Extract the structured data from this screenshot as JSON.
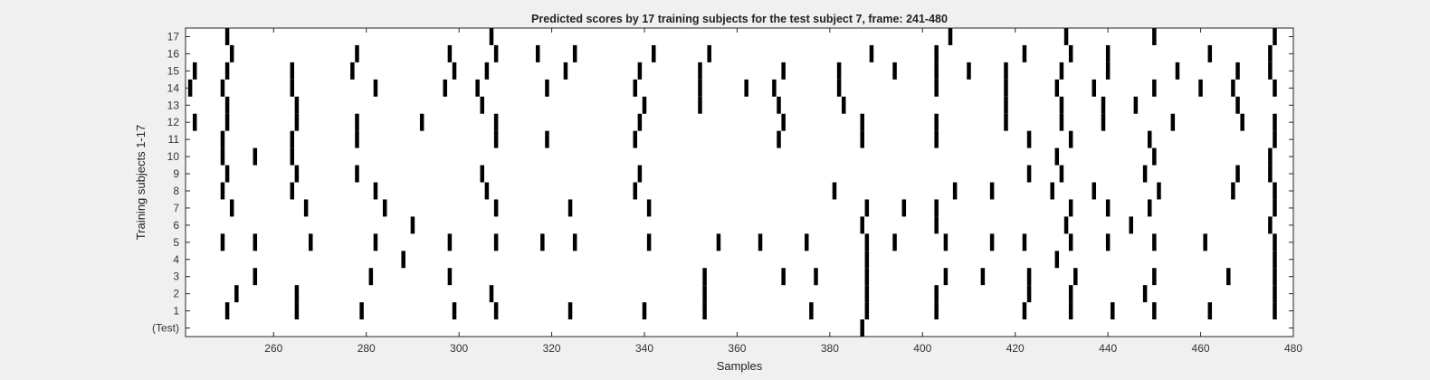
{
  "chart_data": {
    "type": "heatmap",
    "title": "Predicted scores by 17 training subjects for the test subject 7, frame: 241-480",
    "xlabel": "Samples",
    "ylabel": "Training subjects 1-17",
    "xlim": [
      241,
      480
    ],
    "xticks": [
      260,
      280,
      300,
      320,
      340,
      360,
      380,
      400,
      420,
      440,
      460,
      480
    ],
    "rows": [
      "(Test)",
      "1",
      "2",
      "3",
      "4",
      "5",
      "6",
      "7",
      "8",
      "9",
      "10",
      "11",
      "12",
      "13",
      "14",
      "15",
      "16",
      "17"
    ],
    "colors": {
      "mark": "#000000",
      "plot_bg": "#ffffff",
      "figure_bg": "#f0f0f0",
      "axis": "#262626"
    },
    "marks": [
      {
        "row": "(Test)",
        "x": [
          387
        ]
      },
      {
        "row": "1",
        "x": [
          250,
          265,
          279,
          299,
          308,
          324,
          340,
          353,
          376,
          388,
          403,
          422,
          432,
          441,
          450,
          462,
          476
        ]
      },
      {
        "row": "2",
        "x": [
          252,
          265,
          307,
          353,
          388,
          403,
          423,
          432,
          448,
          476
        ]
      },
      {
        "row": "3",
        "x": [
          256,
          281,
          298,
          353,
          370,
          377,
          388,
          405,
          413,
          423,
          433,
          450,
          466,
          476
        ]
      },
      {
        "row": "4",
        "x": [
          288,
          388,
          429,
          476
        ]
      },
      {
        "row": "5",
        "x": [
          249,
          256,
          268,
          282,
          298,
          308,
          318,
          325,
          341,
          356,
          365,
          375,
          388,
          394,
          405,
          415,
          422,
          432,
          440,
          450,
          461,
          476
        ]
      },
      {
        "row": "6",
        "x": [
          290,
          387,
          403,
          431,
          445,
          475
        ]
      },
      {
        "row": "7",
        "x": [
          251,
          267,
          284,
          308,
          324,
          341,
          388,
          396,
          403,
          432,
          440,
          449,
          476
        ]
      },
      {
        "row": "8",
        "x": [
          249,
          264,
          282,
          306,
          338,
          381,
          407,
          415,
          428,
          437,
          451,
          467,
          476
        ]
      },
      {
        "row": "9",
        "x": [
          250,
          265,
          278,
          305,
          339,
          423,
          430,
          448,
          468,
          475
        ]
      },
      {
        "row": "10",
        "x": [
          249,
          256,
          264,
          429,
          450,
          475
        ]
      },
      {
        "row": "11",
        "x": [
          249,
          264,
          278,
          308,
          319,
          338,
          369,
          387,
          403,
          423,
          432,
          449,
          476
        ]
      },
      {
        "row": "12",
        "x": [
          243,
          250,
          265,
          278,
          292,
          308,
          339,
          370,
          387,
          403,
          418,
          430,
          439,
          454,
          469,
          476
        ]
      },
      {
        "row": "13",
        "x": [
          250,
          265,
          305,
          340,
          352,
          369,
          383,
          418,
          430,
          439,
          446,
          468
        ]
      },
      {
        "row": "14",
        "x": [
          242,
          249,
          264,
          282,
          297,
          304,
          319,
          338,
          352,
          362,
          368,
          382,
          403,
          418,
          429,
          437,
          450,
          460,
          467,
          476
        ]
      },
      {
        "row": "15",
        "x": [
          243,
          250,
          264,
          277,
          299,
          306,
          323,
          339,
          352,
          370,
          382,
          394,
          403,
          410,
          418,
          430,
          440,
          455,
          468,
          475
        ]
      },
      {
        "row": "16",
        "x": [
          251,
          278,
          298,
          308,
          317,
          325,
          342,
          354,
          389,
          403,
          422,
          432,
          440,
          462,
          475
        ]
      },
      {
        "row": "17",
        "x": [
          250,
          307,
          406,
          431,
          450,
          476
        ]
      }
    ]
  }
}
